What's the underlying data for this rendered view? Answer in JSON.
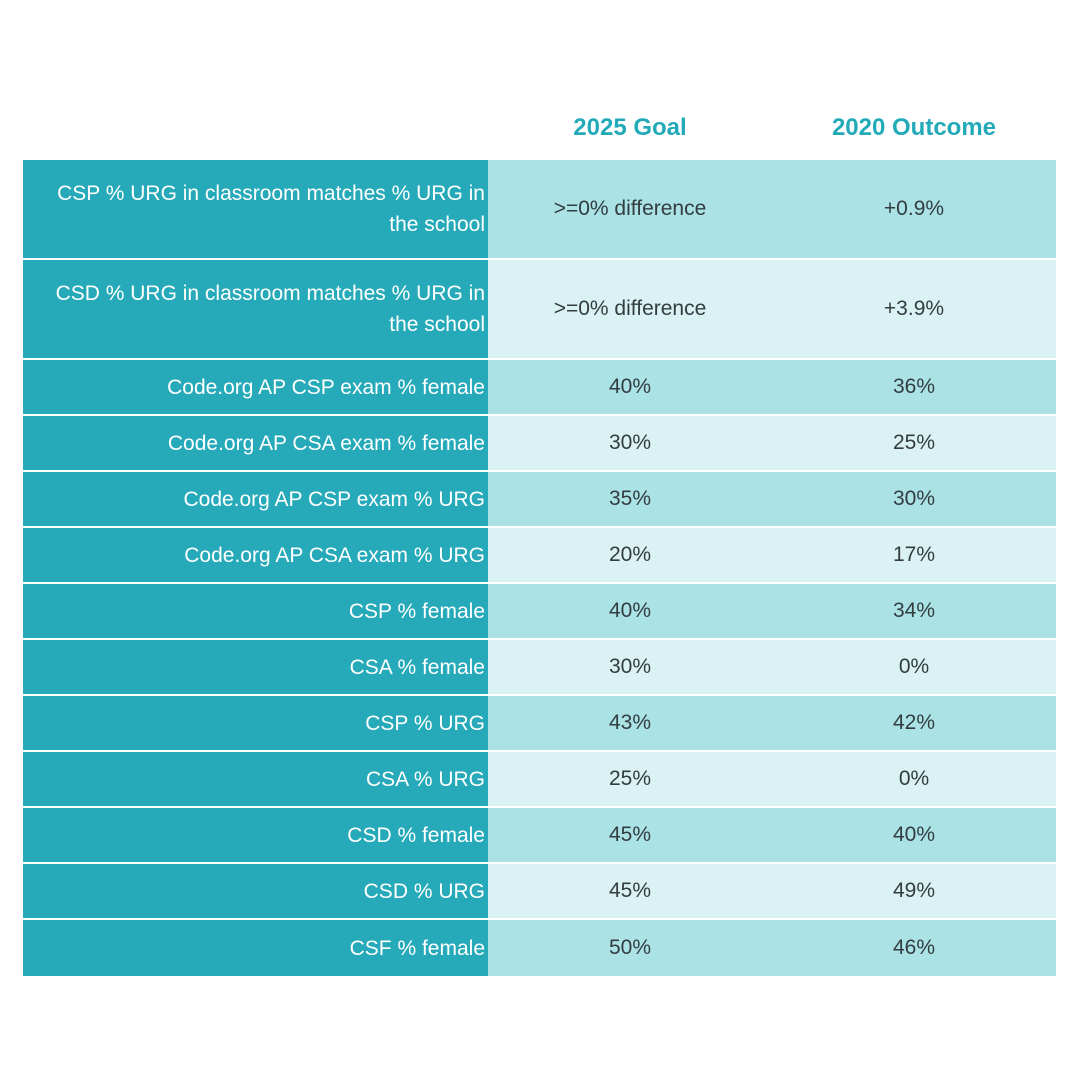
{
  "chart_data": {
    "type": "table",
    "columns": [
      "",
      "2025 Goal",
      "2020 Outcome"
    ],
    "rows": [
      {
        "metric": "CSP % URG in classroom matches % URG in the school",
        "goal": ">=0% difference",
        "outcome": "+0.9%"
      },
      {
        "metric": "CSD % URG in classroom matches % URG in the school",
        "goal": ">=0% difference",
        "outcome": "+3.9%"
      },
      {
        "metric": "Code.org AP CSP exam % female",
        "goal": "40%",
        "outcome": "36%"
      },
      {
        "metric": "Code.org AP CSA exam % female",
        "goal": "30%",
        "outcome": "25%"
      },
      {
        "metric": "Code.org AP CSP exam % URG",
        "goal": "35%",
        "outcome": "30%"
      },
      {
        "metric": "Code.org AP CSA exam % URG",
        "goal": "20%",
        "outcome": "17%"
      },
      {
        "metric": "CSP % female",
        "goal": "40%",
        "outcome": "34%"
      },
      {
        "metric": "CSA % female",
        "goal": "30%",
        "outcome": "0%"
      },
      {
        "metric": "CSP % URG",
        "goal": "43%",
        "outcome": "42%"
      },
      {
        "metric": "CSA % URG",
        "goal": "25%",
        "outcome": "0%"
      },
      {
        "metric": "CSD % female",
        "goal": "45%",
        "outcome": "40%"
      },
      {
        "metric": "CSD % URG",
        "goal": "45%",
        "outcome": "49%"
      },
      {
        "metric": "CSF % female",
        "goal": "50%",
        "outcome": "46%"
      }
    ]
  },
  "colors": {
    "label_bg": "#26aab9",
    "odd_bg": "#aae2e6",
    "even_bg": "#daf2f3",
    "header_text": "#22aab8"
  }
}
